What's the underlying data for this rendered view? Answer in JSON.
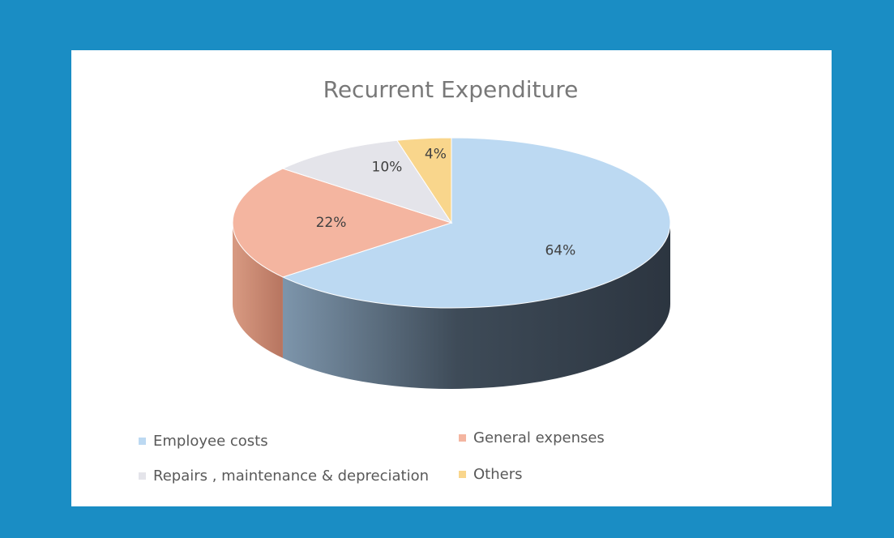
{
  "chart_data": {
    "type": "pie",
    "title": "Recurrent Expenditure",
    "categories": [
      "Employee costs",
      "General expenses",
      "Repairs , maintenance & depreciation",
      "Others"
    ],
    "values": [
      64,
      22,
      10,
      4
    ],
    "value_labels": [
      "64%",
      "22%",
      "10%",
      "4%"
    ],
    "colors": [
      "#bcd9f2",
      "#f4b5a0",
      "#e4e4ea",
      "#f9d68c"
    ],
    "legend": "bottom"
  }
}
